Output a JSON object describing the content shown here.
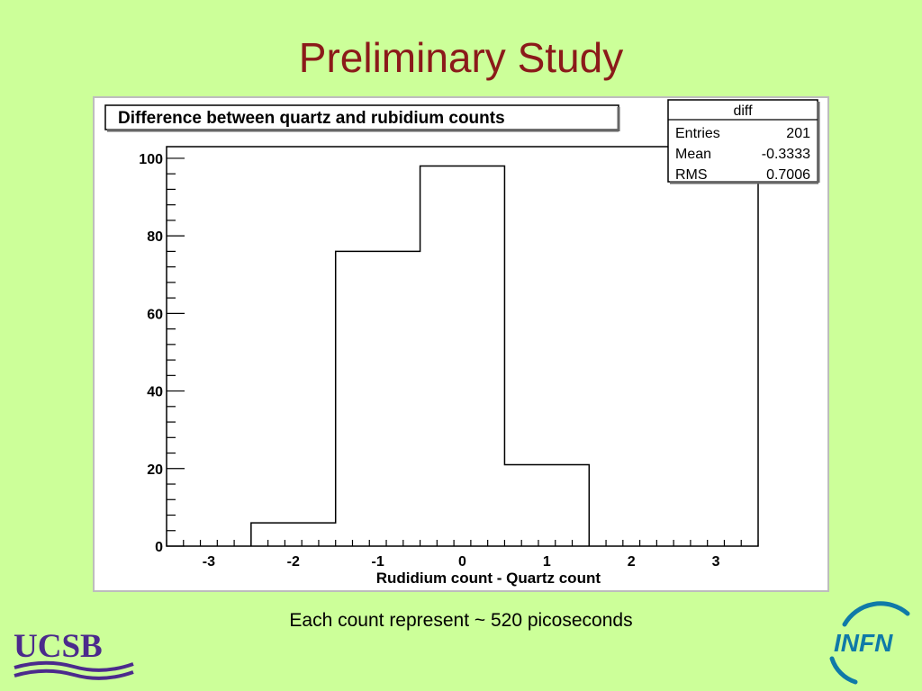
{
  "slide": {
    "title": "Preliminary Study",
    "caption": "Each count represent ~ 520 picoseconds",
    "logos": {
      "left": "UCSB",
      "right": "INFN",
      "colors": {
        "ucsb": "#4b2a8c",
        "infn": "#0f7aa8",
        "infn_accent": "#1ab0c9"
      }
    }
  },
  "colors": {
    "background": "#ccff99",
    "title": "#8b1a1a",
    "plot_line": "#000000",
    "frame_border": "#bdbdbd"
  },
  "chart_data": {
    "type": "bar",
    "histogram_style": "step",
    "title": "Difference between quartz and rubidium counts",
    "xlabel": "Rudidium count - Quartz count",
    "ylabel": "",
    "xlim": [
      -3.5,
      3.5
    ],
    "ylim": [
      0,
      103
    ],
    "x_ticks": [
      -3,
      -2,
      -1,
      0,
      1,
      2,
      3
    ],
    "y_ticks": [
      0,
      20,
      40,
      60,
      80,
      100
    ],
    "grid": false,
    "bins": [
      {
        "low": -2.5,
        "high": -1.5,
        "value": 6
      },
      {
        "low": -1.5,
        "high": -0.5,
        "value": 76
      },
      {
        "low": -0.5,
        "high": 0.5,
        "value": 98
      },
      {
        "low": 0.5,
        "high": 1.5,
        "value": 21
      }
    ],
    "stats_box": {
      "name": "diff",
      "placement": "top-right",
      "rows": [
        {
          "label": "Entries",
          "value": "201"
        },
        {
          "label": "Mean",
          "value": "-0.3333"
        },
        {
          "label": "RMS",
          "value": "0.7006"
        }
      ]
    }
  }
}
